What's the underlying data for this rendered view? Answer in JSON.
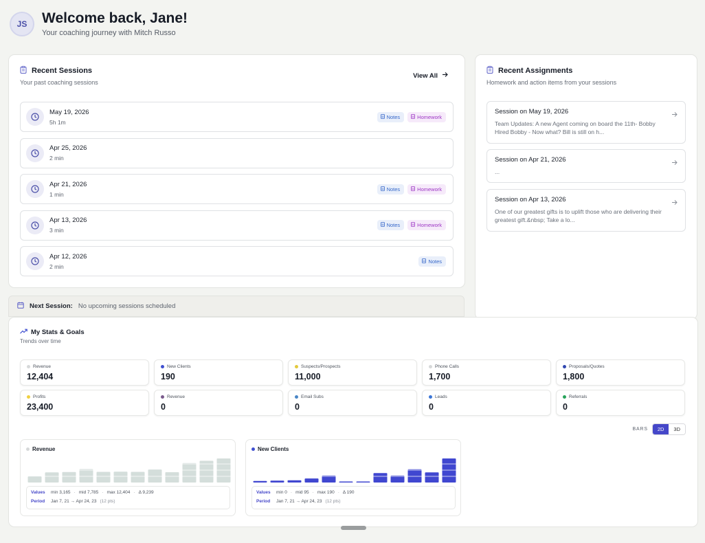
{
  "header": {
    "avatar_initials": "JS",
    "welcome": "Welcome back, Jane!",
    "subtitle": "Your coaching journey with Mitch Russo"
  },
  "sessions": {
    "title": "Recent Sessions",
    "subtitle": "Your past coaching sessions",
    "view_all": "View All",
    "items": [
      {
        "date": "May 19, 2026",
        "duration": "5h 1m",
        "notes": "Notes",
        "homework": "Homework"
      },
      {
        "date": "Apr 25, 2026",
        "duration": "2 min"
      },
      {
        "date": "Apr 21, 2026",
        "duration": "1 min",
        "notes": "Notes",
        "homework": "Homework"
      },
      {
        "date": "Apr 13, 2026",
        "duration": "3 min",
        "notes": "Notes",
        "homework": "Homework"
      },
      {
        "date": "Apr 12, 2026",
        "duration": "2 min",
        "notes": "Notes"
      }
    ]
  },
  "next_session": {
    "label": "Next Session:",
    "value": "No upcoming sessions scheduled"
  },
  "assignments": {
    "title": "Recent Assignments",
    "subtitle": "Homework and action items from your sessions",
    "items": [
      {
        "title": "Session on May 19, 2026",
        "desc": "Team Updates: A new Agent coming on board the 11th- Bobby Hired Bobby - Now what? Bill is still on h..."
      },
      {
        "title": "Session on Apr 21, 2026",
        "desc": "..."
      },
      {
        "title": "Session on Apr 13, 2026",
        "desc": "One of our greatest gifts is to uplift those who are delivering their greatest gift.&nbsp; Take a lo..."
      }
    ]
  },
  "stats": {
    "title": "My Stats & Goals",
    "subtitle": "Trends over time",
    "cards": [
      {
        "label": "Revenue",
        "value": "12,404",
        "color": "#d6d8d9"
      },
      {
        "label": "New Clients",
        "value": "190",
        "color": "#3f4fd0"
      },
      {
        "label": "Suspects/Prospects",
        "value": "11,000",
        "color": "#e3c93c"
      },
      {
        "label": "Phone Calls",
        "value": "1,700",
        "color": "#d6d8d9"
      },
      {
        "label": "Proposals/Quotes",
        "value": "1,800",
        "color": "#3148b0"
      },
      {
        "label": "Profits",
        "value": "23,400",
        "color": "#f0d040"
      },
      {
        "label": "Revenue",
        "value": "0",
        "color": "#7a5a8c"
      },
      {
        "label": "Email Subs",
        "value": "0",
        "color": "#4a86c6"
      },
      {
        "label": "Leads",
        "value": "0",
        "color": "#3c76d6"
      },
      {
        "label": "Referrals",
        "value": "0",
        "color": "#27a35a"
      }
    ],
    "bars_label": "BARS",
    "toggle_2d": "2D",
    "toggle_3d": "3D"
  },
  "mini_charts": [
    {
      "title": "Revenue",
      "dot_color": "#d6d8d9",
      "bar_color": "#d4dedb",
      "values_label": "Values",
      "min": "min 3,165",
      "mid": "mid 7,785",
      "max": "max 12,404",
      "delta": "Δ 9,239",
      "period_label": "Period",
      "period": "Jan 7, 21 → Apr 24, 23",
      "pts": "(12 pts)"
    },
    {
      "title": "New Clients",
      "dot_color": "#3f4fd0",
      "bar_color": "#4047d0",
      "values_label": "Values",
      "min": "min 0",
      "mid": "mid 95",
      "max": "max 190",
      "delta": "Δ 190",
      "period_label": "Period",
      "period": "Jan 7, 21 → Apr 24, 23",
      "pts": "(12 pts)"
    }
  ],
  "chart_data": [
    {
      "type": "bar",
      "title": "Revenue",
      "ylim": [
        0,
        12404
      ],
      "values": [
        3165,
        5200,
        5400,
        6900,
        5500,
        5600,
        5500,
        6700,
        5300,
        10000,
        11200,
        12404
      ]
    },
    {
      "type": "bar",
      "title": "New Clients",
      "ylim": [
        0,
        190
      ],
      "values": [
        12,
        15,
        18,
        32,
        55,
        0,
        8,
        75,
        55,
        105,
        80,
        190
      ]
    }
  ]
}
